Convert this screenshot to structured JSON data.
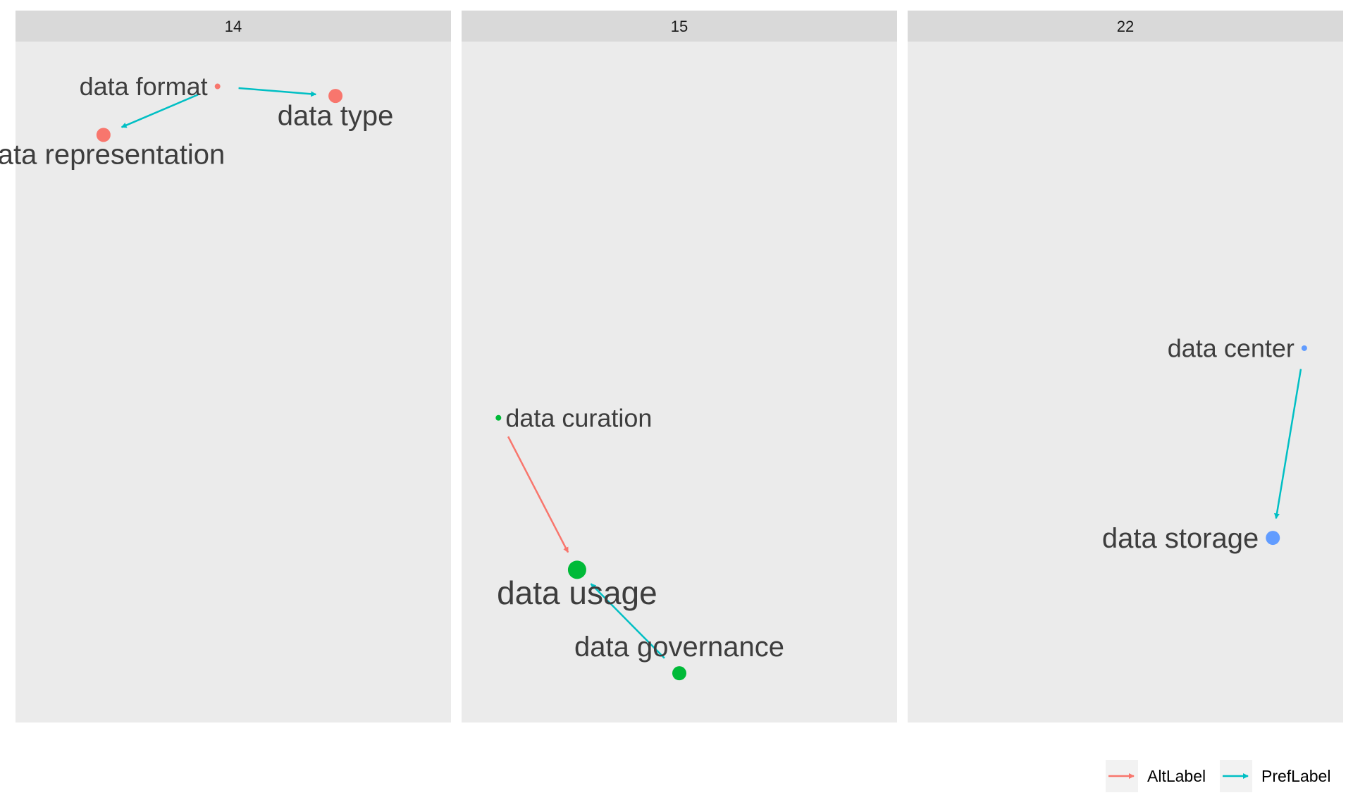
{
  "chart_data": {
    "type": "network",
    "facets": [
      {
        "label": "14",
        "nodes": [
          {
            "id": "data format",
            "x": 0.46,
            "y": 0.963,
            "size": 1,
            "color": "#F8766D",
            "label_pos": "left"
          },
          {
            "id": "data type",
            "x": 0.76,
            "y": 0.948,
            "size": 3,
            "color": "#F8766D",
            "label_pos": "below"
          },
          {
            "id": "data representation",
            "x": 0.17,
            "y": 0.887,
            "size": 3,
            "color": "#F8766D",
            "label_pos": "below"
          }
        ],
        "edges": [
          {
            "from": "data format",
            "to": "data type",
            "type": "PrefLabel"
          },
          {
            "from": "data format",
            "to": "data representation",
            "type": "PrefLabel"
          }
        ]
      },
      {
        "label": "15",
        "nodes": [
          {
            "id": "data curation",
            "x": 0.04,
            "y": 0.444,
            "size": 1,
            "color": "#00BA38",
            "label_pos": "right"
          },
          {
            "id": "data usage",
            "x": 0.24,
            "y": 0.206,
            "size": 5,
            "color": "#00BA38",
            "label_pos": "below"
          },
          {
            "id": "data governance",
            "x": 0.5,
            "y": 0.044,
            "size": 3,
            "color": "#00BA38",
            "label_pos": "above"
          }
        ],
        "edges": [
          {
            "from": "data curation",
            "to": "data usage",
            "type": "AltLabel"
          },
          {
            "from": "data governance",
            "to": "data usage",
            "type": "PrefLabel"
          }
        ]
      },
      {
        "label": "22",
        "nodes": [
          {
            "id": "data center",
            "x": 0.955,
            "y": 0.553,
            "size": 1,
            "color": "#619CFF",
            "label_pos": "left"
          },
          {
            "id": "data storage",
            "x": 0.875,
            "y": 0.256,
            "size": 3,
            "color": "#619CFF",
            "label_pos": "left"
          }
        ],
        "edges": [
          {
            "from": "data center",
            "to": "data storage",
            "type": "PrefLabel"
          }
        ]
      }
    ],
    "edge_colors": {
      "AltLabel": "#F8766D",
      "PrefLabel": "#00BFC4"
    },
    "legend": {
      "position": "bottom-right",
      "items": [
        {
          "label": "AltLabel",
          "color": "#F8766D"
        },
        {
          "label": "PrefLabel",
          "color": "#00BFC4"
        }
      ]
    },
    "panel_background": "#EBEBEB",
    "strip_background": "#D9D9D9",
    "grid": false
  }
}
